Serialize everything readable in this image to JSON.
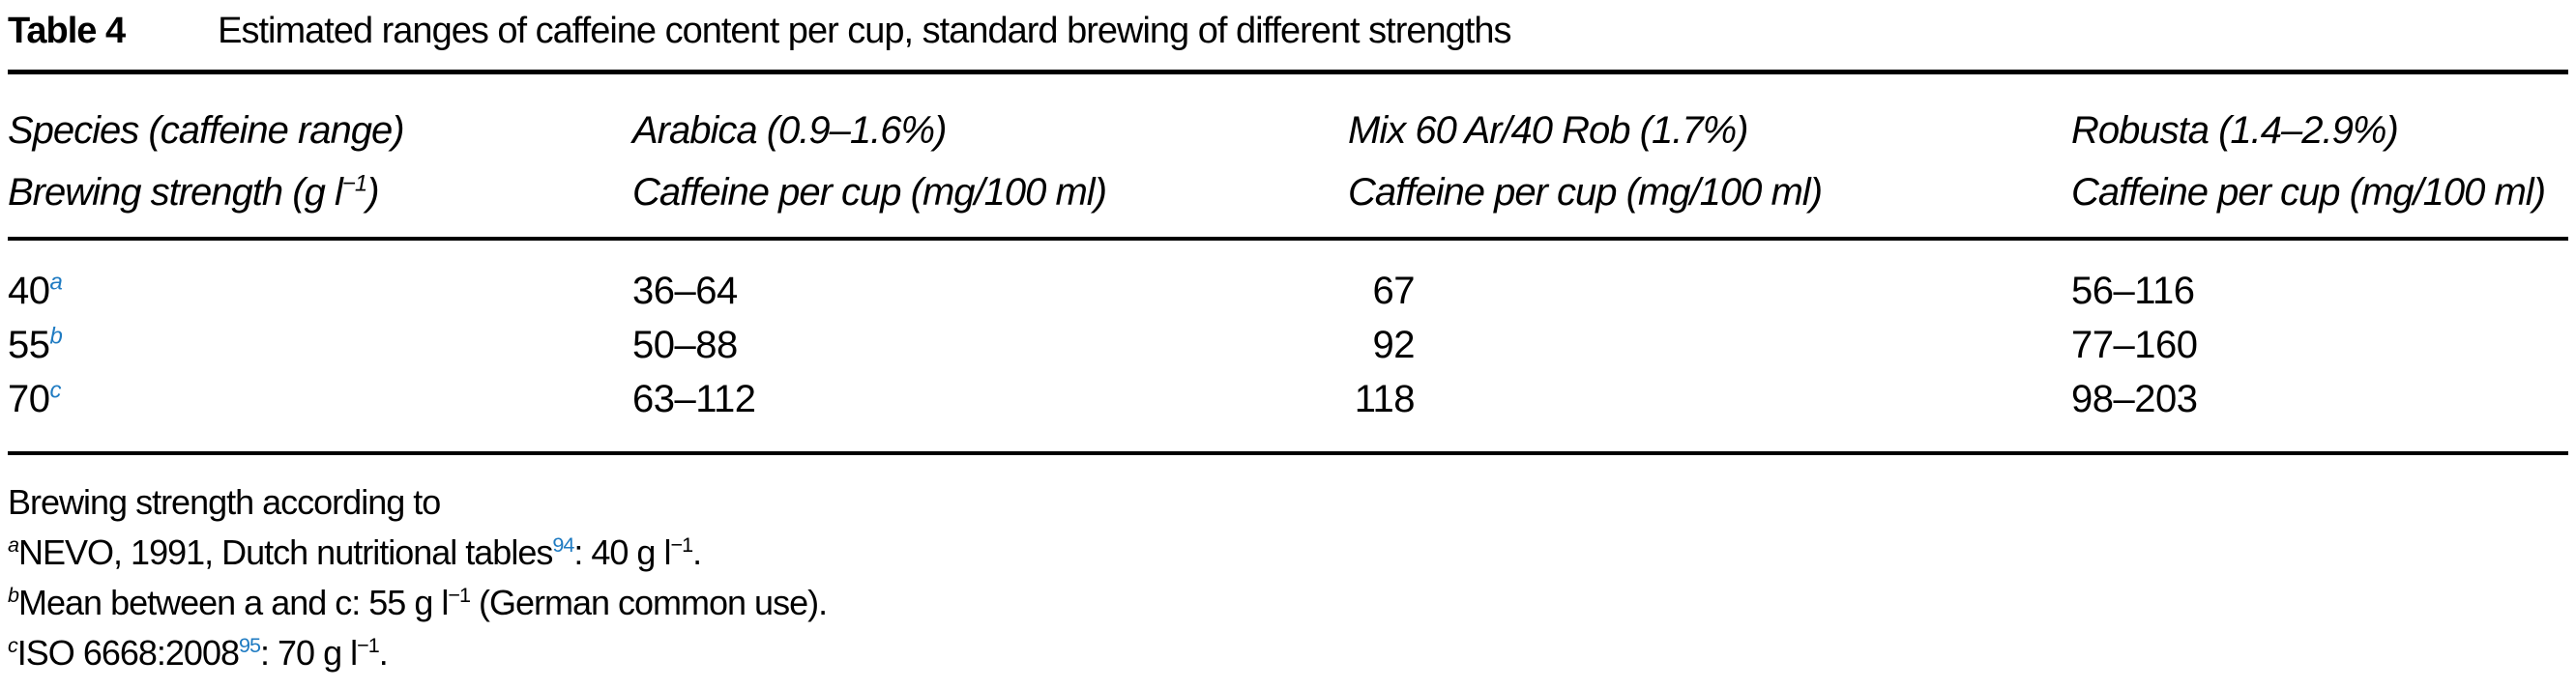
{
  "colors": {
    "link_blue": "#1f7bc2",
    "text": "#000000",
    "background": "#ffffff"
  },
  "caption": {
    "label": "Table 4",
    "text": "Estimated ranges of caffeine content per cup, standard brewing of different strengths"
  },
  "table": {
    "header": {
      "columns": [
        {
          "line1": [
            {
              "t": "Species (caffeine range)"
            }
          ],
          "line2": [
            {
              "t": "Brewing strength (g l"
            },
            {
              "t": "−1",
              "sup": true
            },
            {
              "t": ")"
            }
          ]
        },
        {
          "line1": [
            {
              "t": "Arabica (0.9–1.6%)"
            }
          ],
          "line2": [
            {
              "t": "Caffeine per cup (mg/100 ml)"
            }
          ]
        },
        {
          "line1": [
            {
              "t": "Mix 60 Ar/40 Rob (1.7%)"
            }
          ],
          "line2": [
            {
              "t": "Caffeine per cup (mg/100 ml)"
            }
          ]
        },
        {
          "line1": [
            {
              "t": "Robusta (1.4–2.9%)"
            }
          ],
          "line2": [
            {
              "t": "Caffeine per cup (mg/100 ml)"
            }
          ]
        }
      ]
    },
    "rows": [
      {
        "strength": "40",
        "marker": "a",
        "arabica": "36–64",
        "mix": "67",
        "robusta": "56–116"
      },
      {
        "strength": "55",
        "marker": "b",
        "arabica": "50–88",
        "mix": "92",
        "robusta": "77–160"
      },
      {
        "strength": "70",
        "marker": "c",
        "arabica": "63–112",
        "mix": "118",
        "robusta": "98–203"
      }
    ]
  },
  "footnotes": {
    "intro": "Brewing strength according to",
    "items": [
      {
        "segments": [
          {
            "t": "a",
            "sup": true,
            "it": true
          },
          {
            "t": "NEVO, 1991, Dutch nutritional tables"
          },
          {
            "t": "94",
            "sup": true,
            "blue": true
          },
          {
            "t": ": 40 g l"
          },
          {
            "t": "−1",
            "sup": true
          },
          {
            "t": "."
          }
        ]
      },
      {
        "segments": [
          {
            "t": "b",
            "sup": true,
            "it": true
          },
          {
            "t": "Mean between a and c: 55 g l"
          },
          {
            "t": "−1",
            "sup": true
          },
          {
            "t": " (German common use)."
          }
        ]
      },
      {
        "segments": [
          {
            "t": "c",
            "sup": true,
            "it": true
          },
          {
            "t": "ISO 6668:2008"
          },
          {
            "t": "95",
            "sup": true,
            "blue": true
          },
          {
            "t": ": 70 g l"
          },
          {
            "t": "−1",
            "sup": true
          },
          {
            "t": "."
          }
        ]
      }
    ]
  }
}
